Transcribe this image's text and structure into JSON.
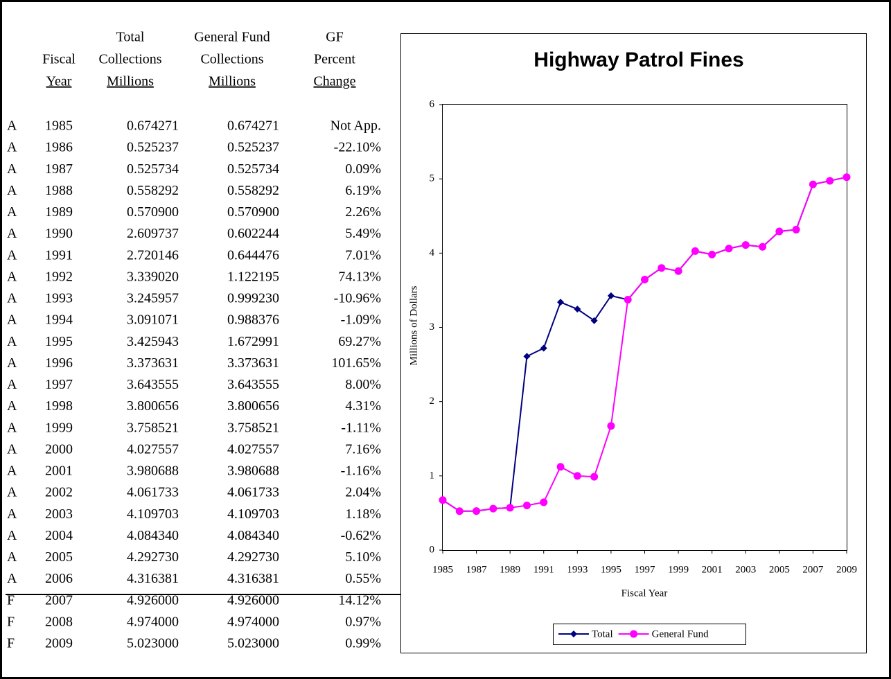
{
  "table": {
    "columns": [
      [
        "Fiscal",
        "Year"
      ],
      [
        "Total",
        "Collections",
        "Millions"
      ],
      [
        "General Fund",
        "Collections",
        "Millions"
      ],
      [
        "GF",
        "Percent",
        "Change"
      ]
    ],
    "rows": [
      [
        "A",
        "1985",
        "0.674271",
        "0.674271",
        "Not App."
      ],
      [
        "A",
        "1986",
        "0.525237",
        "0.525237",
        "-22.10%"
      ],
      [
        "A",
        "1987",
        "0.525734",
        "0.525734",
        "0.09%"
      ],
      [
        "A",
        "1988",
        "0.558292",
        "0.558292",
        "6.19%"
      ],
      [
        "A",
        "1989",
        "0.570900",
        "0.570900",
        "2.26%"
      ],
      [
        "A",
        "1990",
        "2.609737",
        "0.602244",
        "5.49%"
      ],
      [
        "A",
        "1991",
        "2.720146",
        "0.644476",
        "7.01%"
      ],
      [
        "A",
        "1992",
        "3.339020",
        "1.122195",
        "74.13%"
      ],
      [
        "A",
        "1993",
        "3.245957",
        "0.999230",
        "-10.96%"
      ],
      [
        "A",
        "1994",
        "3.091071",
        "0.988376",
        "-1.09%"
      ],
      [
        "A",
        "1995",
        "3.425943",
        "1.672991",
        "69.27%"
      ],
      [
        "A",
        "1996",
        "3.373631",
        "3.373631",
        "101.65%"
      ],
      [
        "A",
        "1997",
        "3.643555",
        "3.643555",
        "8.00%"
      ],
      [
        "A",
        "1998",
        "3.800656",
        "3.800656",
        "4.31%"
      ],
      [
        "A",
        "1999",
        "3.758521",
        "3.758521",
        "-1.11%"
      ],
      [
        "A",
        "2000",
        "4.027557",
        "4.027557",
        "7.16%"
      ],
      [
        "A",
        "2001",
        "3.980688",
        "3.980688",
        "-1.16%"
      ],
      [
        "A",
        "2002",
        "4.061733",
        "4.061733",
        "2.04%"
      ],
      [
        "A",
        "2003",
        "4.109703",
        "4.109703",
        "1.18%"
      ],
      [
        "A",
        "2004",
        "4.084340",
        "4.084340",
        "-0.62%"
      ],
      [
        "A",
        "2005",
        "4.292730",
        "4.292730",
        "5.10%"
      ],
      [
        "A",
        "2006",
        "4.316381",
        "4.316381",
        "0.55%"
      ],
      [
        "F",
        "2007",
        "4.926000",
        "4.926000",
        "14.12%"
      ],
      [
        "F",
        "2008",
        "4.974000",
        "4.974000",
        "0.97%"
      ],
      [
        "F",
        "2009",
        "5.023000",
        "5.023000",
        "0.99%"
      ]
    ]
  },
  "chart_data": {
    "type": "line",
    "title": "Highway Patrol Fines",
    "x_label": "Fiscal Year",
    "y_label": "Millions of Dollars",
    "x": [
      1985,
      1986,
      1987,
      1988,
      1989,
      1990,
      1991,
      1992,
      1993,
      1994,
      1995,
      1996,
      1997,
      1998,
      1999,
      2000,
      2001,
      2002,
      2003,
      2004,
      2005,
      2006,
      2007,
      2008,
      2009
    ],
    "xlim": [
      1985,
      2009
    ],
    "xticks": [
      1985,
      1987,
      1989,
      1991,
      1993,
      1995,
      1997,
      1999,
      2001,
      2003,
      2005,
      2007,
      2009
    ],
    "ylim": [
      0,
      6
    ],
    "yticks": [
      0,
      1,
      2,
      3,
      4,
      5,
      6
    ],
    "series": [
      {
        "name": "Total",
        "color": "#000080",
        "marker": "diamond",
        "values": [
          0.674271,
          0.525237,
          0.525734,
          0.558292,
          0.5709,
          2.609737,
          2.720146,
          3.33902,
          3.245957,
          3.091071,
          3.425943,
          3.373631,
          3.643555,
          3.800656,
          3.758521,
          4.027557,
          3.980688,
          4.061733,
          4.109703,
          4.08434,
          4.29273,
          4.316381,
          4.926,
          4.974,
          5.023
        ]
      },
      {
        "name": "General Fund",
        "color": "#ff00ff",
        "marker": "circle",
        "values": [
          0.674271,
          0.525237,
          0.525734,
          0.558292,
          0.5709,
          0.602244,
          0.644476,
          1.122195,
          0.99923,
          0.988376,
          1.672991,
          3.373631,
          3.643555,
          3.800656,
          3.758521,
          4.027557,
          3.980688,
          4.061733,
          4.109703,
          4.08434,
          4.29273,
          4.316381,
          4.926,
          4.974,
          5.023
        ]
      }
    ]
  }
}
